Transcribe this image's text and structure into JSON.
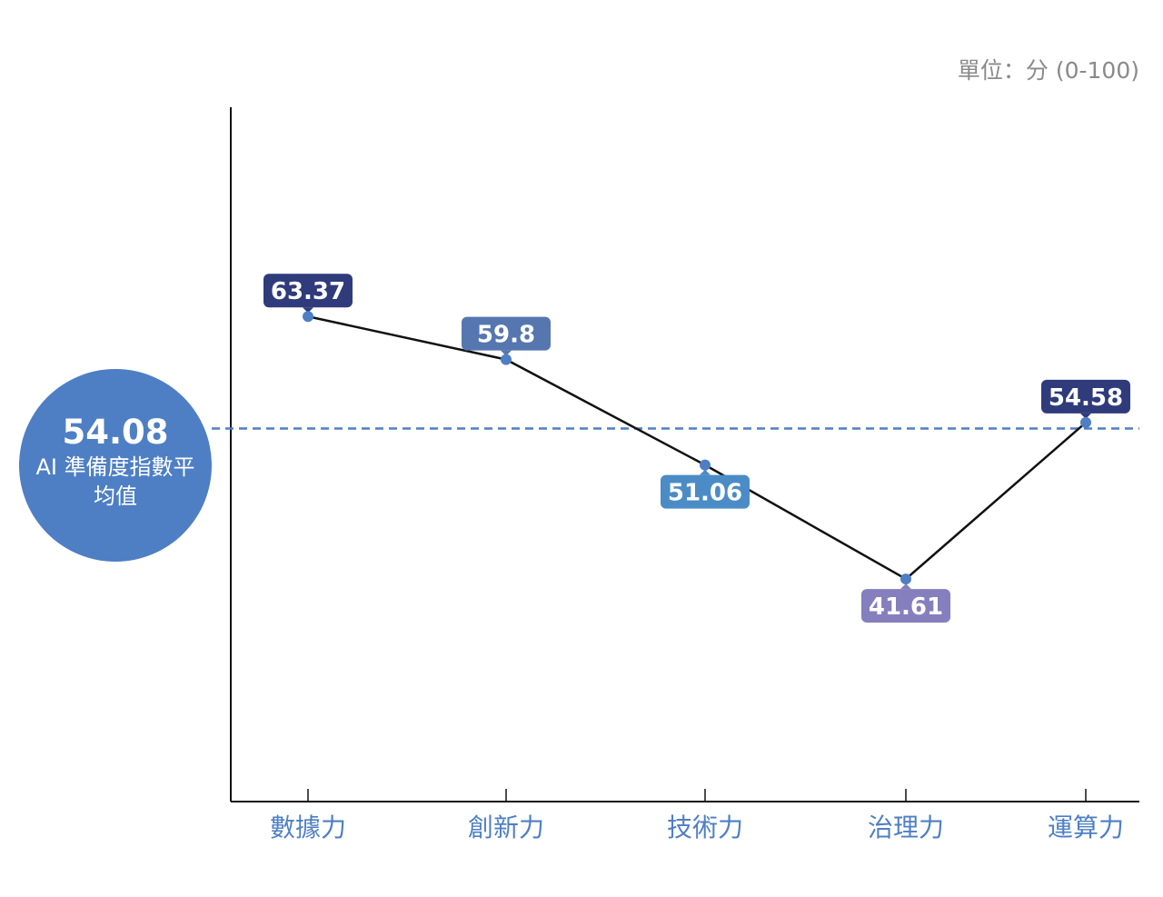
{
  "unit_text": "單位：分 (0-100)",
  "average": {
    "value": "54.08",
    "label": "AI 準備度指數平均值",
    "level": 54.08,
    "color": "#4e7fc4"
  },
  "chart_data": {
    "type": "line",
    "categories": [
      "數據力",
      "創新力",
      "技術力",
      "治理力",
      "運算力"
    ],
    "series": [
      {
        "values": [
          63.37,
          59.8,
          51.06,
          41.61,
          54.58
        ],
        "labels": [
          "63.37",
          "59.8",
          "51.06",
          "41.61",
          "54.58"
        ],
        "label_colors": [
          "#2f3b7b",
          "#5676b0",
          "#4b8cc6",
          "#857fbe",
          "#2f3b7b"
        ],
        "label_position": [
          "above",
          "above",
          "below",
          "below",
          "above"
        ]
      }
    ],
    "reference_line": {
      "value": 54.08,
      "style": "dashed",
      "color": "#4e7fc4"
    },
    "ylim": [
      0,
      100
    ],
    "xlabel": "",
    "ylabel": "",
    "grid": false,
    "line_color": "#111111",
    "point_color": "#4e7fc4",
    "category_color": "#4e7fc4"
  }
}
